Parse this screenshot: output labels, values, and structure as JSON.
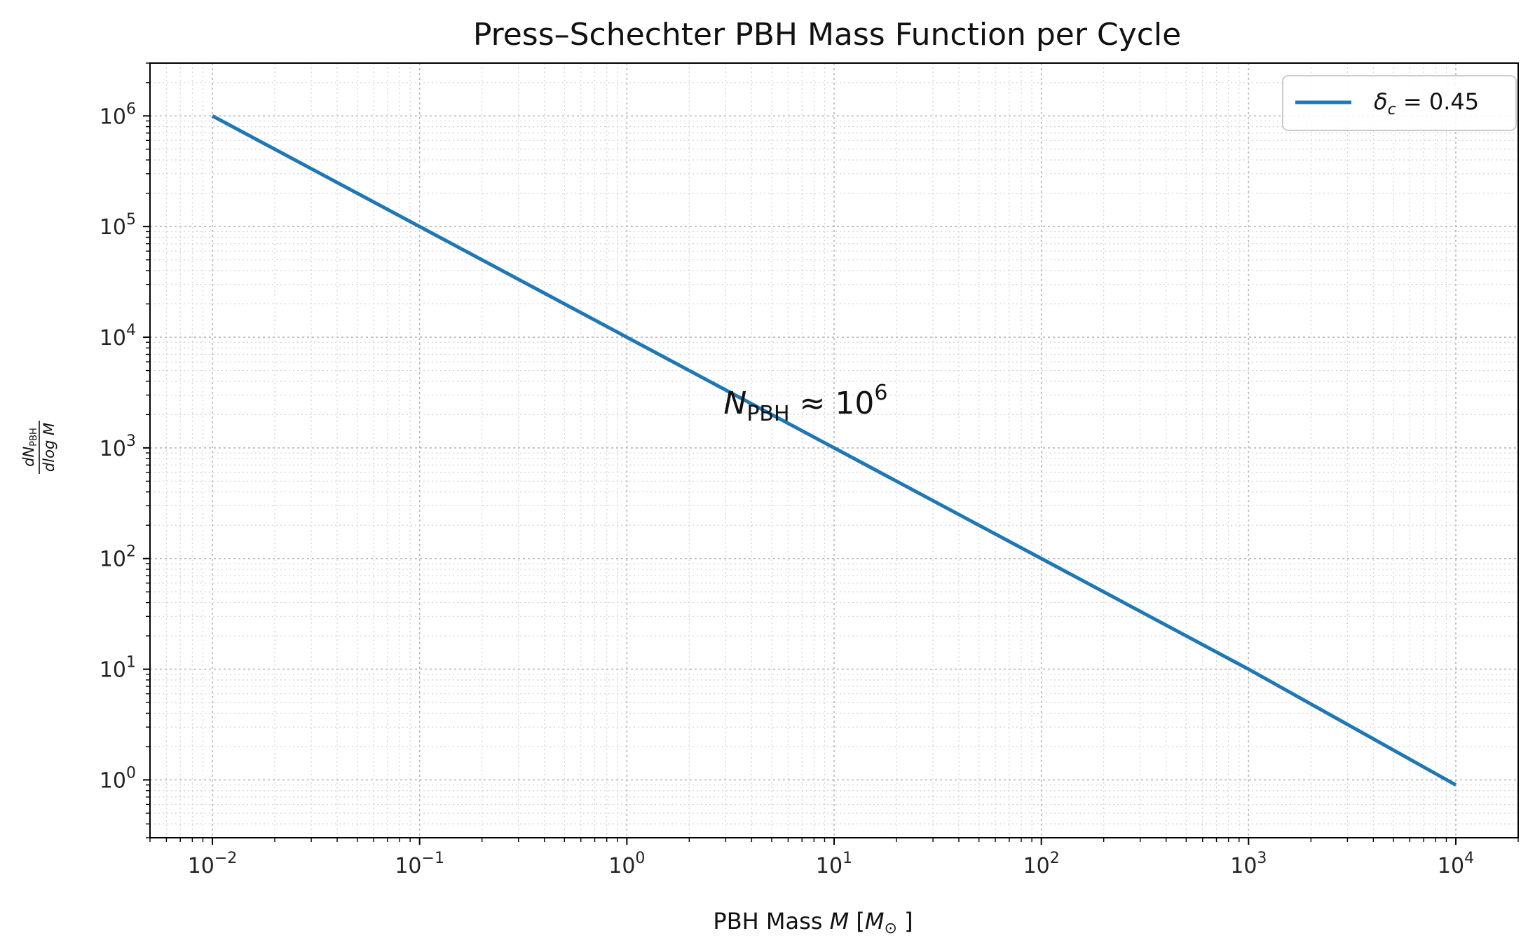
{
  "chart_data": {
    "type": "line",
    "title": "Press–Schechter PBH Mass Function per Cycle",
    "xlabel": {
      "prefix": "PBH Mass ",
      "var": "M",
      "open": " [",
      "unit": "M",
      "unit_sub": "⊙",
      "close": " ]"
    },
    "ylabel": {
      "num_d": "dN",
      "num_sub": "PBH",
      "den": "dlog M"
    },
    "xscale": "log",
    "yscale": "log",
    "xlim": [
      0.005,
      20000
    ],
    "ylim": [
      0.3,
      3000000
    ],
    "grid": "both",
    "x_ticks": [
      {
        "value": 0.01,
        "base": "10",
        "exp": "−2"
      },
      {
        "value": 0.1,
        "base": "10",
        "exp": "−1"
      },
      {
        "value": 1,
        "base": "10",
        "exp": "0"
      },
      {
        "value": 10,
        "base": "10",
        "exp": "1"
      },
      {
        "value": 100,
        "base": "10",
        "exp": "2"
      },
      {
        "value": 1000,
        "base": "10",
        "exp": "3"
      },
      {
        "value": 10000,
        "base": "10",
        "exp": "4"
      }
    ],
    "y_ticks": [
      {
        "value": 1,
        "base": "10",
        "exp": "0"
      },
      {
        "value": 10,
        "base": "10",
        "exp": "1"
      },
      {
        "value": 100,
        "base": "10",
        "exp": "2"
      },
      {
        "value": 1000,
        "base": "10",
        "exp": "3"
      },
      {
        "value": 10000,
        "base": "10",
        "exp": "4"
      },
      {
        "value": 100000,
        "base": "10",
        "exp": "5"
      },
      {
        "value": 1000000,
        "base": "10",
        "exp": "6"
      }
    ],
    "series": [
      {
        "name_var": "δ",
        "name_sub": "c",
        "name_rest": " = 0.45",
        "color": "#1f77b4",
        "x": [
          0.01,
          0.1,
          1,
          10,
          100,
          1000,
          10000
        ],
        "y": [
          1000000,
          100000,
          10000,
          1000,
          100,
          10,
          0.9
        ]
      }
    ],
    "legend_position": "top-right",
    "annotation": {
      "var": "N",
      "sub": "PBH",
      "rest": " ≈ 10",
      "sup": "6",
      "x": 3,
      "y": 2500
    }
  }
}
